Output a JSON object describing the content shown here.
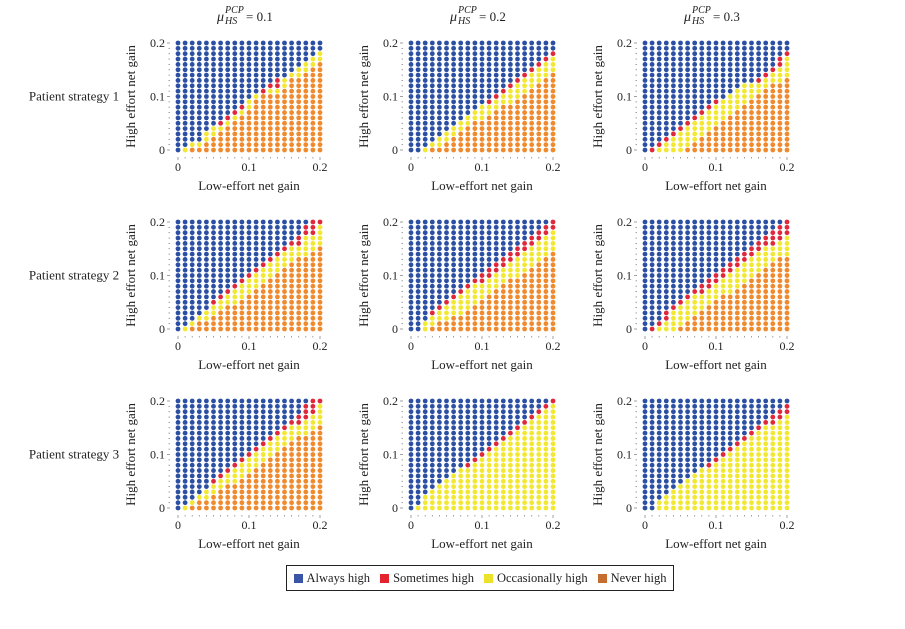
{
  "chart_data": {
    "type": "scatter",
    "title": "",
    "grid_size": 21,
    "x_values": "0 to 0.2 step 0.01",
    "y_values": "0 to 0.2 step 0.01",
    "xlabel": "Low-effort net gain",
    "ylabel": "High effort net gain",
    "xlim": [
      0,
      0.2
    ],
    "ylim": [
      0,
      0.2
    ],
    "xticks": [
      "0",
      "0.1",
      "0.2"
    ],
    "yticks": [
      "0",
      "0.1",
      "0.2"
    ],
    "column_titles": [
      {
        "symbol": "μ",
        "sup": "PCP",
        "sub": "HS",
        "rest": " = 0.1"
      },
      {
        "symbol": "μ",
        "sup": "PCP",
        "sub": "HS",
        "rest": " = 0.2"
      },
      {
        "symbol": "μ",
        "sup": "PCP",
        "sub": "HS",
        "rest": " = 0.3"
      }
    ],
    "row_titles": [
      "Patient strategy 1",
      "Patient strategy 2",
      "Patient strategy 3"
    ],
    "legend": [
      {
        "key": "B",
        "label": "Always high",
        "color": "#2b4fa3"
      },
      {
        "key": "R",
        "label": "Sometimes high",
        "color": "#e0283c"
      },
      {
        "key": "Y",
        "label": "Occasionally high",
        "color": "#f2e832"
      },
      {
        "key": "O",
        "label": "Never high",
        "color": "#f08a2e"
      }
    ],
    "legend_placement": "bottom-center",
    "grid_note": "rows listed from y=0.2 (top) to y=0 (bottom); characters are x=0..0.2",
    "panels": [
      {
        "row": 0,
        "col": 0,
        "grid": [
          "BBBBBBBBBBBBBBBBBBBBB",
          "BBBBBBBBBBBBBBBBBBBBB",
          "BBBBBBBBBBBBBBBBBBBBY",
          "BBBBBBBBBBBBBBBBBBBYY",
          "BBBBBBBBBBBBBBBBBBYYO",
          "BBBBBBBBBBBBBBBBBYYOO",
          "BBBBBBBBBBBBBBBBYYOOO",
          "BBBBBBBBBBBBBBRYOOOOO",
          "BBBBBBBBBBBBBRRYOOOOO",
          "BBBBBBBBBBBBRYYOOOOOO",
          "BBBBBBBBBBBYOOOOOOOOO",
          "BBBBBBBBBBYOOOOOOOOOO",
          "BBBBBBBBBRYOOOOOOOOOO",
          "BBBBBBBBRYOOOOOOOOOOO",
          "BBBBBBBRYOOOOOOOOOOOO",
          "BBBBBBRYOOOOOOOOOOOOO",
          "BBBBBYYOOOOOOOOOOOOOO",
          "BBBBYYOOOOOOOOOOOOOOO",
          "BBBBYOOOOOOOOOOOOOOOO",
          "BBYYOOOOOOOOOOOOOOOOO",
          "BYOOOOOOOOOOOOOOOOOOO"
        ]
      },
      {
        "row": 0,
        "col": 1,
        "grid": [
          "BBBBBBBBBBBBBBBBBBBBB",
          "BBBBBBBBBBBBBBBBBBBBB",
          "BBBBBBBBBBBBBBBBBBBBR",
          "BBBBBBBBBBBBBBBBBBBRY",
          "BBBBBBBBBBBBBBBBBBRYY",
          "BBBBBBBBBBBBBBBBBRYYY",
          "BBBBBBBBBBBBBBBBRYYYO",
          "BBBBBBBBBBBBBBBRYYYOO",
          "BBBBBBBBBBBBBBRYYYOOO",
          "BBBBBBBBBBBBBRYYYOOOO",
          "BBBBBBBBBBBBRYYYOOOOO",
          "BBBBBBBBBBBRYYYOOOOOO",
          "BBBBBBBBBBYYYOOOOOOOO",
          "BBBBBBBBBYYYOOOOOOOOO",
          "BBBBBBBBYYYOOOOOOOOOO",
          "BBBBBBBYYOOOOOOOOOOOO",
          "BBBBBBYYOOOOOOOOOOOOO",
          "BBBBBYYOOOOOOOOOOOOOO",
          "BBBBYYOOOOOOOOOOOOOOO",
          "BBBYYOOOOOOOOOOOOOOOO",
          "BBYOOOOOOOOOOOOOOOOOO"
        ]
      },
      {
        "row": 0,
        "col": 2,
        "grid": [
          "BBBBBBBBBBBBBBBBBBBBB",
          "BBBBBBBBBBBBBBBBBBBBB",
          "BBBBBBBBBBBBBBBBBBBBR",
          "BBBBBBBBBBBBBBBBBBBRY",
          "BBBBBBBBBBBBBBBBBBBRY",
          "BBBBBBBBBBBBBBBBBBRYY",
          "BBBBBBBBBBBBBBBBBRYYY",
          "BBBBBBBBBBBBBBBBRYYYO",
          "BBBBBBBBBBBBBBYYYYOOO",
          "BBBBBBBBBBBBBYYYYOOOO",
          "BBBBBBBBBBBBYYYYOOOOO",
          "BBBBBBBBBBRYYYYOOOOOO",
          "BBBBBBBBBRYYYYOOOOOOO",
          "BBBBBBBBRYYYYOOOOOOOO",
          "BBBBBBBRYYYYOOOOOOOOO",
          "BBBBBBRYYYYOOOOOOOOOO",
          "BBBBBRYYYYOOOOOOOOOOO",
          "BBBBRYYYYOOOOOOOOOOOO",
          "BBBRYYYYOOOOOOOOOOOOO",
          "BBRYYYYOOOOOOOOOOOOOO",
          "BRYYYYOOOOOOOOOOOOOOO"
        ]
      },
      {
        "row": 1,
        "col": 0,
        "grid": [
          "BBBBBBBBBBBBBBBBBBBRR",
          "BBBBBBBBBBBBBBBBBBRRY",
          "BBBBBBBBBBBBBBBBBBRRY",
          "BBBBBBBBBBBBBBBBBRYYY",
          "BBBBBBBBBBBBBBBBRRYYY",
          "BBBBBBBBBBBBBBBRYYYYO",
          "BBBBBBBBBBBBBBRYYYYOO",
          "BBBBBBBBBBBBBRYYYOOOO",
          "BBBBBBBBBBBBRYYYOOOOO",
          "BBBBBBBBBBBRYYYOOOOOO",
          "BBBBBBBBBBRYYYOOOOOOO",
          "BBBBBBBBBRYYYOOOOOOOO",
          "BBBBBBBBRYYYOOOOOOOOO",
          "BBBBBBBRYYYOOOOOOOOOO",
          "BBBBBBRYYYOOOOOOOOOOO",
          "BBBBBRYYYOOOOOOOOOOOO",
          "BBBBBYYOOOOOOOOOOOOOO",
          "BBBBYYOOOOOOOOOOOOOOO",
          "BBBYYOOOOOOOOOOOOOOOO",
          "BBYOOOOOOOOOOOOOOOOOO",
          "BYOOOOOOOOOOOOOOOOOOO"
        ]
      },
      {
        "row": 1,
        "col": 1,
        "grid": [
          "BBBBBBBBBBBBBBBBBBBBR",
          "BBBBBBBBBBBBBBBBBBBRR",
          "BBBBBBBBBBBBBBBBBBRRY",
          "BBBBBBBBBBBBBBBBBRRYY",
          "BBBBBBBBBBBBBBBBRRYYY",
          "BBBBBBBBBBBBBBBRRYYYY",
          "BBBBBBBBBBBBBBRRYYYYO",
          "BBBBBBBBBBBBBRRYYYYOO",
          "BBBBBBBBBBBBRRYYYYOOO",
          "BBBBBBBBBBBRRYYYYOOOO",
          "BBBBBBBBBBRRYYYYOOOOO",
          "BBBBBBBBBRRYYYOOOOOOO",
          "BBBBBBBBRYYYYOOOOOOOO",
          "BBBBBBBRYYYYOOOOOOOOO",
          "BBBBBBRYYYYOOOOOOOOOO",
          "BBBBBRYYYYOOOOOOOOOOO",
          "BBBBRYYYYOOOOOOOOOOOO",
          "BBBRYYYYOOOOOOOOOOOOO",
          "BBBYYYOOOOOOOOOOOOOOO",
          "BBYYOOOOOOOOOOOOOOOOO",
          "BBYOOOOOOOOOOOOOOOOOO"
        ]
      },
      {
        "row": 1,
        "col": 2,
        "grid": [
          "BBBBBBBBBBBBBBBBBBBBR",
          "BBBBBBBBBBBBBBBBBBBRR",
          "BBBBBBBBBBBBBBBBBBRRR",
          "BBBBBBBBBBBBBBBBBRRRY",
          "BBBBBBBBBBBBBBBBRRRYY",
          "BBBBBBBBBBBBBBBRRYYYY",
          "BBBBBBBBBBBBBBRRYYYYY",
          "BBBBBBBBBBBBBRRYYYYOO",
          "BBBBBBBBBBBBRRYYYYOOO",
          "BBBBBBBBBBBRRYYYYOOOO",
          "BBBBBBBBBBRRYYYYOOOOO",
          "BBBBBBBBBRRYYYYOOOOOO",
          "BBBBBBBBRRYYYYOOOOOOO",
          "BBBBBBBRRYYYYOOOOOOOO",
          "BBBBBBRYYYYOOOOOOOOOO",
          "BBBBBRYYYYOOOOOOOOOOO",
          "BBBBRYYYYOOOOOOOOOOOO",
          "BBBRYYYYOOOOOOOOOOOOO",
          "BBBRYYYOOOOOOOOOOOOOO",
          "BBRYYYOOOOOOOOOOOOOOO",
          "BRYYYOOOOOOOOOOOOOOOO"
        ]
      },
      {
        "row": 2,
        "col": 0,
        "grid": [
          "BBBBBBBBBBBBBBBBBBBRR",
          "BBBBBBBBBBBBBBBBBBRRY",
          "BBBBBBBBBBBBBBBBBBRRY",
          "BBBBBBBBBBBBBBBBBRRYY",
          "BBBBBBBBBBBBBBBBRRYYY",
          "BBBBBBBBBBBBBBBRYYYYO",
          "BBBBBBBBBBBBBBRYYYYOO",
          "BBBBBBBBBBBBBRYYYOOOO",
          "BBBBBBBBBBBBRYYYOOOOO",
          "BBBBBBBBBBBRYYYOOOOOO",
          "BBBBBBBBBBRYYYOOOOOOO",
          "BBBBBBBBBRYYYOOOOOOOO",
          "BBBBBBBBRYYYOOOOOOOOO",
          "BBBBBBBRYYYOOOOOOOOOO",
          "BBBBBBRYYYOOOOOOOOOOO",
          "BBBBBRYYYOOOOOOOOOOOO",
          "BBBBBYYOOOOOOOOOOOOOO",
          "BBBBYYOOOOOOOOOOOOOOO",
          "BBBYYOOOOOOOOOOOOOOOO",
          "BBYOOOOOOOOOOOOOOOOOO",
          "BYOOOOOOOOOOOOOOOOOOO"
        ]
      },
      {
        "row": 2,
        "col": 1,
        "grid": [
          "BBBBBBBBBBBBBBBBBBBBR",
          "BBBBBBBBBBBBBBBBBBBRY",
          "BBBBBBBBBBBBBBBBBBRYY",
          "BBBBBBBBBBBBBBBBBRYYY",
          "BBBBBBBBBBBBBBBBRYYYY",
          "BBBBBBBBBBBBBBBRYYYYY",
          "BBBBBBBBBBBBBBRYYYYYY",
          "BBBBBBBBBBBBBRYYYYYYY",
          "BBBBBBBBBBBBRYYYYYYYY",
          "BBBBBBBBBBBRYYYYYYYYY",
          "BBBBBBBBBBRYYYYYYYYYY",
          "BBBBBBBBBRYYYYYYYYYYY",
          "BBBBBBBBRYYYYYYYYYYYY",
          "BBBBBBBYYYYYYYYYYYYYY",
          "BBBBBBYYYYYYYYYYYYYYY",
          "BBBBBYYYYYYYYYYYYYYYY",
          "BBBBYYYYYYYYYYYYYYYYY",
          "BBBYYYYYYYYYYYYYYYYYY",
          "BBYYYYYYYYYYYYYYYYYYY",
          "BBYYYYYYYYYYYYYYYYYYY",
          "BYYYYYYYYYYYYYYYYYYYY"
        ]
      },
      {
        "row": 2,
        "col": 2,
        "grid": [
          "BBBBBBBBBBBBBBBBBBBBB",
          "BBBBBBBBBBBBBBBBBBBBR",
          "BBBBBBBBBBBBBBBBBBBRR",
          "BBBBBBBBBBBBBBBBBBRRY",
          "BBBBBBBBBBBBBBBBBRRYY",
          "BBBBBBBBBBBBBBBBRYYYY",
          "BBBBBBBBBBBBBBBRYYYYY",
          "BBBBBBBBBBBBBBRYYYYYY",
          "BBBBBBBBBBBBBRYYYYYYY",
          "BBBBBBBBBBBBRYYYYYYYY",
          "BBBBBBBBBBBRYYYYYYYYY",
          "BBBBBBBBBBRYYYYYYYYYY",
          "BBBBBBBBBRYYYYYYYYYYY",
          "BBBBBBBBYYYYYYYYYYYYY",
          "BBBBBBBYYYYYYYYYYYYYY",
          "BBBBBBYYYYYYYYYYYYYYY",
          "BBBBBYYYYYYYYYYYYYYYY",
          "BBBBYYYYYYYYYYYYYYYYY",
          "BBBYYYYYYYYYYYYYYYYYY",
          "BBYYYYYYYYYYYYYYYYYYY",
          "BBYYYYYYYYYYYYYYYYYYY"
        ]
      }
    ]
  }
}
